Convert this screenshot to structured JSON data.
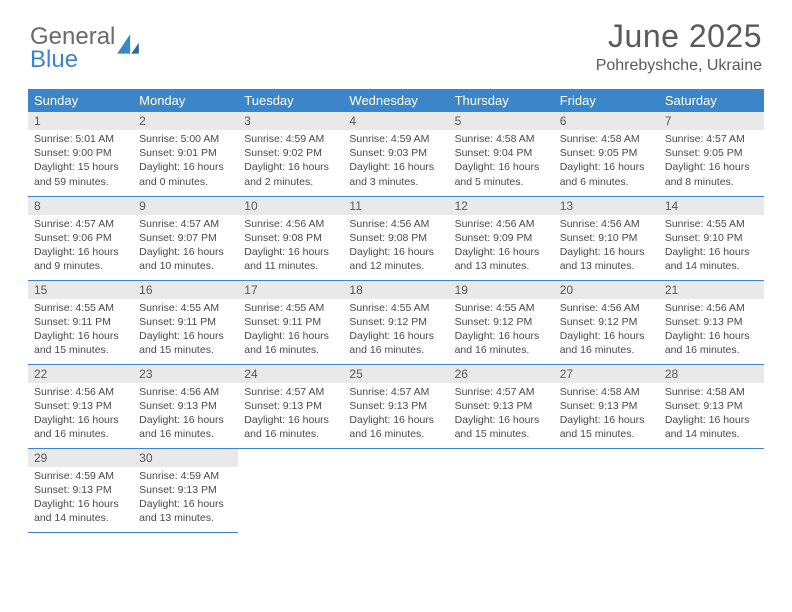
{
  "logo": {
    "line1": "General",
    "line2": "Blue"
  },
  "title": "June 2025",
  "location": "Pohrebyshche, Ukraine",
  "header_bg": "#3a86c8",
  "header_fg": "#ffffff",
  "rule_color": "#3a86c8",
  "daynum_bg": "#e9e9e9",
  "weekdays": [
    "Sunday",
    "Monday",
    "Tuesday",
    "Wednesday",
    "Thursday",
    "Friday",
    "Saturday"
  ],
  "weeks": [
    [
      {
        "n": "1",
        "sr": "5:01 AM",
        "ss": "9:00 PM",
        "dl": "15 hours and 59 minutes."
      },
      {
        "n": "2",
        "sr": "5:00 AM",
        "ss": "9:01 PM",
        "dl": "16 hours and 0 minutes."
      },
      {
        "n": "3",
        "sr": "4:59 AM",
        "ss": "9:02 PM",
        "dl": "16 hours and 2 minutes."
      },
      {
        "n": "4",
        "sr": "4:59 AM",
        "ss": "9:03 PM",
        "dl": "16 hours and 3 minutes."
      },
      {
        "n": "5",
        "sr": "4:58 AM",
        "ss": "9:04 PM",
        "dl": "16 hours and 5 minutes."
      },
      {
        "n": "6",
        "sr": "4:58 AM",
        "ss": "9:05 PM",
        "dl": "16 hours and 6 minutes."
      },
      {
        "n": "7",
        "sr": "4:57 AM",
        "ss": "9:05 PM",
        "dl": "16 hours and 8 minutes."
      }
    ],
    [
      {
        "n": "8",
        "sr": "4:57 AM",
        "ss": "9:06 PM",
        "dl": "16 hours and 9 minutes."
      },
      {
        "n": "9",
        "sr": "4:57 AM",
        "ss": "9:07 PM",
        "dl": "16 hours and 10 minutes."
      },
      {
        "n": "10",
        "sr": "4:56 AM",
        "ss": "9:08 PM",
        "dl": "16 hours and 11 minutes."
      },
      {
        "n": "11",
        "sr": "4:56 AM",
        "ss": "9:08 PM",
        "dl": "16 hours and 12 minutes."
      },
      {
        "n": "12",
        "sr": "4:56 AM",
        "ss": "9:09 PM",
        "dl": "16 hours and 13 minutes."
      },
      {
        "n": "13",
        "sr": "4:56 AM",
        "ss": "9:10 PM",
        "dl": "16 hours and 13 minutes."
      },
      {
        "n": "14",
        "sr": "4:55 AM",
        "ss": "9:10 PM",
        "dl": "16 hours and 14 minutes."
      }
    ],
    [
      {
        "n": "15",
        "sr": "4:55 AM",
        "ss": "9:11 PM",
        "dl": "16 hours and 15 minutes."
      },
      {
        "n": "16",
        "sr": "4:55 AM",
        "ss": "9:11 PM",
        "dl": "16 hours and 15 minutes."
      },
      {
        "n": "17",
        "sr": "4:55 AM",
        "ss": "9:11 PM",
        "dl": "16 hours and 16 minutes."
      },
      {
        "n": "18",
        "sr": "4:55 AM",
        "ss": "9:12 PM",
        "dl": "16 hours and 16 minutes."
      },
      {
        "n": "19",
        "sr": "4:55 AM",
        "ss": "9:12 PM",
        "dl": "16 hours and 16 minutes."
      },
      {
        "n": "20",
        "sr": "4:56 AM",
        "ss": "9:12 PM",
        "dl": "16 hours and 16 minutes."
      },
      {
        "n": "21",
        "sr": "4:56 AM",
        "ss": "9:13 PM",
        "dl": "16 hours and 16 minutes."
      }
    ],
    [
      {
        "n": "22",
        "sr": "4:56 AM",
        "ss": "9:13 PM",
        "dl": "16 hours and 16 minutes."
      },
      {
        "n": "23",
        "sr": "4:56 AM",
        "ss": "9:13 PM",
        "dl": "16 hours and 16 minutes."
      },
      {
        "n": "24",
        "sr": "4:57 AM",
        "ss": "9:13 PM",
        "dl": "16 hours and 16 minutes."
      },
      {
        "n": "25",
        "sr": "4:57 AM",
        "ss": "9:13 PM",
        "dl": "16 hours and 16 minutes."
      },
      {
        "n": "26",
        "sr": "4:57 AM",
        "ss": "9:13 PM",
        "dl": "16 hours and 15 minutes."
      },
      {
        "n": "27",
        "sr": "4:58 AM",
        "ss": "9:13 PM",
        "dl": "16 hours and 15 minutes."
      },
      {
        "n": "28",
        "sr": "4:58 AM",
        "ss": "9:13 PM",
        "dl": "16 hours and 14 minutes."
      }
    ],
    [
      {
        "n": "29",
        "sr": "4:59 AM",
        "ss": "9:13 PM",
        "dl": "16 hours and 14 minutes."
      },
      {
        "n": "30",
        "sr": "4:59 AM",
        "ss": "9:13 PM",
        "dl": "16 hours and 13 minutes."
      },
      null,
      null,
      null,
      null,
      null
    ]
  ],
  "labels": {
    "sunrise": "Sunrise:",
    "sunset": "Sunset:",
    "daylight": "Daylight:"
  }
}
